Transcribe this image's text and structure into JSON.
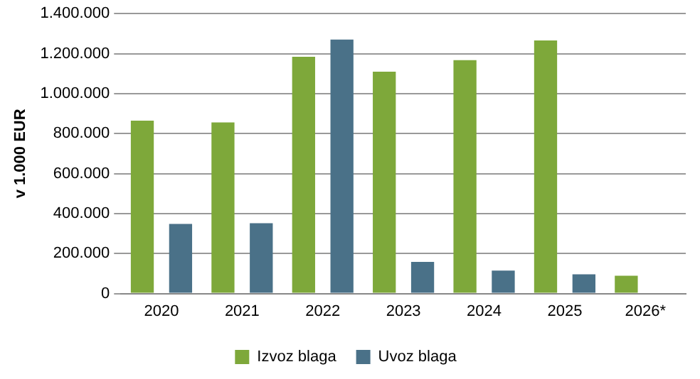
{
  "chart_data": {
    "type": "bar",
    "ylabel": "v 1.000 EUR",
    "categories": [
      "2020",
      "2021",
      "2022",
      "2023",
      "2024",
      "2025",
      "2026*"
    ],
    "series": [
      {
        "name": "Izvoz blaga",
        "color": "#7ea83a",
        "values": [
          865000,
          856000,
          1184000,
          1110000,
          1167000,
          1266000,
          89000
        ]
      },
      {
        "name": "Uvoz blaga",
        "color": "#4a7188",
        "values": [
          348000,
          352000,
          1270000,
          158000,
          115000,
          96000,
          null
        ]
      }
    ],
    "ylim": [
      0,
      1400000
    ],
    "yticks": [
      {
        "value": 0,
        "label": "0"
      },
      {
        "value": 200000,
        "label": "200.000"
      },
      {
        "value": 400000,
        "label": "400.000"
      },
      {
        "value": 600000,
        "label": "600.000"
      },
      {
        "value": 800000,
        "label": "800.000"
      },
      {
        "value": 1000000,
        "label": "1.000.000"
      },
      {
        "value": 1200000,
        "label": "1.200.000"
      },
      {
        "value": 1400000,
        "label": "1.400.000"
      }
    ],
    "grid": "y",
    "legend": "bottom"
  }
}
